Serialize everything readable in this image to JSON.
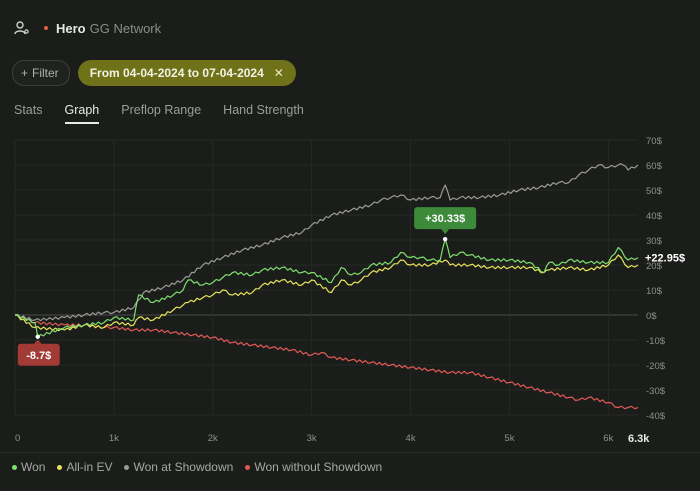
{
  "header": {
    "player": "Hero",
    "network": "GG Network"
  },
  "filters": {
    "filter_label": "Filter",
    "date_range": "From 04-04-2024 to 07-04-2024"
  },
  "tabs": [
    {
      "label": "Stats",
      "active": false
    },
    {
      "label": "Graph",
      "active": true
    },
    {
      "label": "Preflop Range",
      "active": false
    },
    {
      "label": "Hand Strength",
      "active": false
    }
  ],
  "colors": {
    "won": "#7ee06e",
    "allin_ev": "#e6e45a",
    "showdown": "#9a9a9a",
    "non_showdown": "#e05a55",
    "chip": "#6f7218"
  },
  "chart_data": {
    "type": "line",
    "x_ticks": [
      "0",
      "1k",
      "2k",
      "3k",
      "4k",
      "5k",
      "6k"
    ],
    "x_end_label": "6.3k",
    "xlim": [
      0,
      6300
    ],
    "y_ticks": [
      "70$",
      "60$",
      "50$",
      "40$",
      "30$",
      "20$",
      "10$",
      "0$",
      "-10$",
      "-20$",
      "-30$",
      "-40$"
    ],
    "ylim": [
      -40,
      70
    ],
    "grid": true,
    "legend_placement": "bottom-left",
    "annotations": [
      {
        "label": "+30.33$",
        "x": 4350,
        "y": 30.33,
        "series": "Won"
      },
      {
        "label": "-8.7$",
        "x": 230,
        "y": -8.7,
        "series": "Won"
      },
      {
        "label": "+22.95$",
        "x": 6300,
        "y": 22.95,
        "series": "Won"
      }
    ],
    "series": [
      {
        "name": "Won",
        "x": [
          0,
          200,
          230,
          500,
          700,
          900,
          1000,
          1200,
          1250,
          1400,
          1600,
          1700,
          1750,
          1900,
          2000,
          2100,
          2200,
          2400,
          2500,
          2700,
          2900,
          3000,
          3200,
          3300,
          3400,
          3500,
          3600,
          3800,
          3900,
          4000,
          4100,
          4200,
          4300,
          4350,
          4400,
          4500,
          4600,
          4800,
          5000,
          5200,
          5350,
          5400,
          5500,
          5600,
          5800,
          6000,
          6100,
          6200,
          6300
        ],
        "y": [
          0,
          -3,
          -8.7,
          -5,
          -4,
          -3,
          -1,
          -2,
          8,
          5,
          8,
          10,
          14,
          12,
          13,
          15,
          17,
          16,
          18,
          19,
          17,
          17,
          13,
          19,
          16,
          17,
          20,
          21,
          25,
          23,
          23,
          22,
          22,
          30.33,
          23,
          25,
          24,
          22,
          22,
          21,
          17,
          21,
          20,
          22,
          21,
          21,
          27,
          22,
          22.95
        ]
      },
      {
        "name": "All-in EV",
        "x": [
          0,
          200,
          500,
          700,
          900,
          1000,
          1200,
          1250,
          1400,
          1600,
          1700,
          1750,
          1900,
          2000,
          2100,
          2200,
          2400,
          2500,
          2700,
          2900,
          3000,
          3200,
          3300,
          3400,
          3500,
          3600,
          3800,
          3900,
          4000,
          4200,
          4350,
          4400,
          4600,
          4800,
          5000,
          5200,
          5350,
          5400,
          5600,
          5800,
          6000,
          6100,
          6200,
          6300
        ],
        "y": [
          0,
          -5,
          -6,
          -4,
          -5,
          -3,
          -4,
          -1,
          -2,
          2,
          4,
          5,
          7,
          8,
          10,
          8,
          9,
          12,
          14,
          12,
          14,
          9,
          14,
          12,
          14,
          17,
          19,
          22,
          20,
          20,
          22,
          20,
          20,
          19,
          19,
          19,
          17,
          18,
          19,
          18,
          20,
          24,
          19,
          20
        ]
      },
      {
        "name": "Won at Showdown",
        "x": [
          0,
          200,
          500,
          700,
          900,
          1000,
          1200,
          1300,
          1500,
          1700,
          1900,
          2100,
          2300,
          2500,
          2700,
          2900,
          3000,
          3200,
          3400,
          3600,
          3700,
          3800,
          3900,
          4000,
          4200,
          4300,
          4350,
          4400,
          4500,
          4700,
          4900,
          5100,
          5300,
          5500,
          5600,
          5700,
          5800,
          5900,
          6000,
          6100,
          6150,
          6200,
          6300
        ],
        "y": [
          0,
          -2,
          -1,
          0,
          1,
          1,
          3,
          9,
          11,
          14,
          20,
          23,
          26,
          28,
          31,
          33,
          36,
          40,
          42,
          44,
          46,
          47,
          48,
          46,
          47,
          47,
          52,
          46,
          47,
          47,
          48,
          50,
          51,
          53,
          53,
          56,
          58,
          60,
          59,
          60,
          60,
          58,
          60
        ]
      },
      {
        "name": "Won without Showdown",
        "x": [
          0,
          200,
          500,
          700,
          900,
          1000,
          1200,
          1400,
          1600,
          1800,
          2000,
          2200,
          2400,
          2600,
          2800,
          3000,
          3100,
          3200,
          3400,
          3600,
          3800,
          4000,
          4200,
          4400,
          4600,
          4800,
          5000,
          5200,
          5400,
          5600,
          5700,
          5800,
          6000,
          6100,
          6200,
          6300
        ],
        "y": [
          0,
          -3,
          -4,
          -4,
          -5,
          -5,
          -6,
          -6,
          -7,
          -8,
          -9,
          -11,
          -12,
          -13,
          -14,
          -16,
          -15,
          -17,
          -18,
          -19,
          -20,
          -21,
          -22,
          -23,
          -23,
          -25,
          -27,
          -29,
          -31,
          -33,
          -34,
          -33,
          -35,
          -37,
          -37,
          -37
        ]
      }
    ]
  },
  "legend": [
    {
      "label": "Won",
      "color": "#7ee06e"
    },
    {
      "label": "All-in EV",
      "color": "#e6e45a"
    },
    {
      "label": "Won at Showdown",
      "color": "#9a9a9a"
    },
    {
      "label": "Won without Showdown",
      "color": "#e05a55"
    }
  ]
}
